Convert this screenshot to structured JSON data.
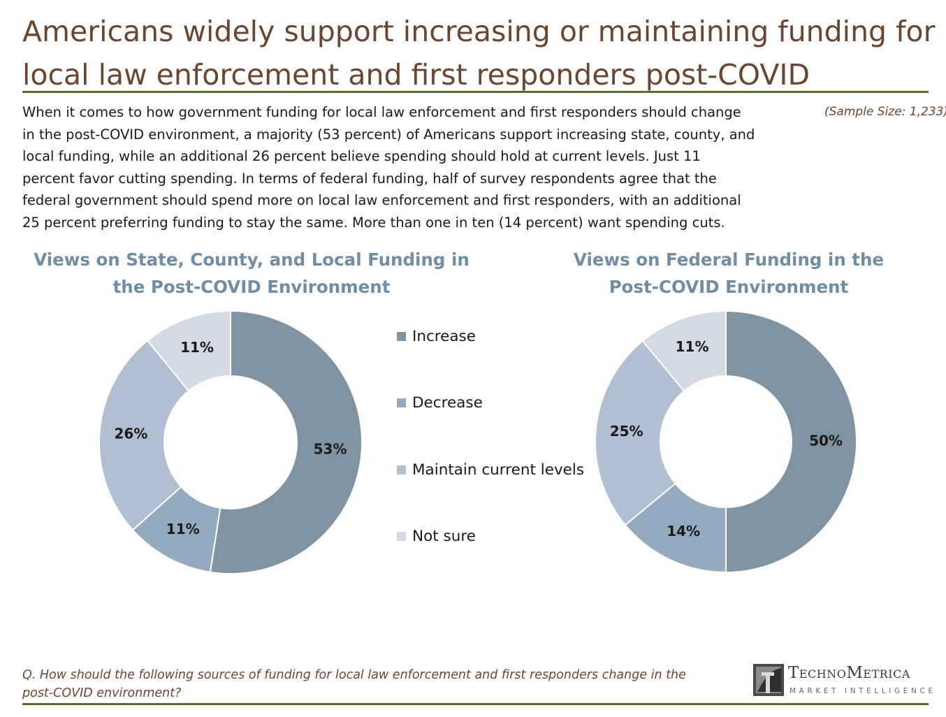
{
  "page": {
    "title_lines": [
      "Americans widely support increasing or maintaining funding for",
      "local law enforcement and first responders post-COVID"
    ],
    "intro_lines": [
      "When it comes to how government funding for local law enforcement and first responders should change",
      "in the post-COVID environment, a majority (53 percent) of Americans support increasing state, county, and",
      "local funding, while an additional 26 percent believe spending should hold at current levels. Just 11",
      "percent favor cutting spending. In terms of federal funding, half of survey respondents agree that the",
      "federal government should spend more on local law enforcement and first responders, with an additional",
      "25 percent preferring funding to stay the same. More than one in ten (14 percent) want spending cuts."
    ],
    "sample_size": "(Sample Size: 1,233)",
    "question_lines": [
      "Q. How should the following sources of funding for local law enforcement and first responders change in the",
      "post-COVID environment?"
    ],
    "logo": {
      "name": "TechnoMetrica",
      "tagline": "MARKET INTELLIGENCE"
    }
  },
  "legend": {
    "items": [
      {
        "label": "Increase",
        "color": "#7f93a3"
      },
      {
        "label": "Decrease",
        "color": "#94aabf"
      },
      {
        "label": "Maintain current levels",
        "color": "#b0bfd1"
      },
      {
        "label": "Not sure",
        "color": "#d3dae4"
      }
    ]
  },
  "chart_data": [
    {
      "type": "pie",
      "donut": true,
      "title_lines": [
        "Views on State, County, and Local Funding in",
        "the Post-COVID Environment"
      ],
      "categories": [
        "Increase",
        "Decrease",
        "Maintain current levels",
        "Not sure"
      ],
      "values": [
        53,
        11,
        26,
        11
      ],
      "labels": [
        "53%",
        "11%",
        "26%",
        "11%"
      ],
      "colors": [
        "#7f93a3",
        "#94aabf",
        "#b0bfd1",
        "#d3dae4"
      ]
    },
    {
      "type": "pie",
      "donut": true,
      "title_lines": [
        "Views on Federal Funding in the",
        "Post-COVID Environment"
      ],
      "categories": [
        "Increase",
        "Decrease",
        "Maintain current levels",
        "Not sure"
      ],
      "values": [
        50,
        14,
        25,
        11
      ],
      "labels": [
        "50%",
        "14%",
        "25%",
        "11%"
      ],
      "colors": [
        "#7f93a3",
        "#94aabf",
        "#b0bfd1",
        "#d3dae4"
      ]
    }
  ]
}
